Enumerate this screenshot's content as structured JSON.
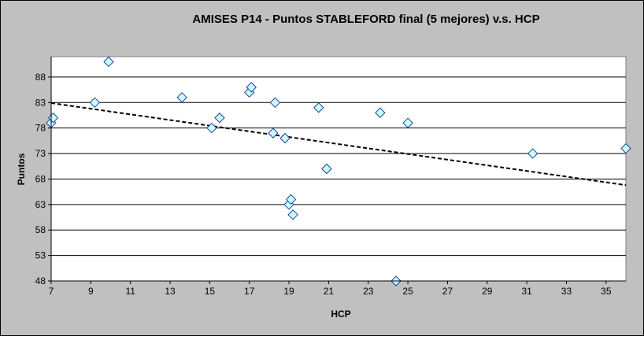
{
  "chart_data": {
    "type": "scatter",
    "title": "AMISES P14 - Puntos STABLEFORD final (5 mejores) v.s. HCP",
    "xlabel": "HCP",
    "ylabel": "Puntos",
    "xlim": [
      7,
      36
    ],
    "ylim": [
      48,
      92
    ],
    "xticks": [
      7,
      9,
      11,
      13,
      15,
      17,
      19,
      21,
      23,
      25,
      27,
      29,
      31,
      33,
      35
    ],
    "yticks": [
      48,
      53,
      58,
      63,
      68,
      73,
      78,
      83,
      88
    ],
    "grid": "horizontal",
    "legend": "none",
    "marker": "diamond",
    "marker_color": "#ccffff",
    "background_color": "#c0c0c0",
    "plot_color": "#ffffff",
    "series": [
      {
        "points": [
          {
            "x": 7.0,
            "y": 79
          },
          {
            "x": 7.1,
            "y": 80
          },
          {
            "x": 9.2,
            "y": 83
          },
          {
            "x": 9.9,
            "y": 91
          },
          {
            "x": 13.6,
            "y": 84
          },
          {
            "x": 15.1,
            "y": 78
          },
          {
            "x": 15.5,
            "y": 80
          },
          {
            "x": 17.0,
            "y": 85
          },
          {
            "x": 17.1,
            "y": 86
          },
          {
            "x": 18.2,
            "y": 77
          },
          {
            "x": 18.3,
            "y": 83
          },
          {
            "x": 18.8,
            "y": 76
          },
          {
            "x": 19.0,
            "y": 63
          },
          {
            "x": 19.1,
            "y": 64
          },
          {
            "x": 19.2,
            "y": 61
          },
          {
            "x": 20.5,
            "y": 82
          },
          {
            "x": 20.9,
            "y": 70
          },
          {
            "x": 23.6,
            "y": 81
          },
          {
            "x": 24.4,
            "y": 48
          },
          {
            "x": 25.0,
            "y": 79
          },
          {
            "x": 31.3,
            "y": 73
          },
          {
            "x": 36.0,
            "y": 74
          }
        ]
      }
    ],
    "trendline": {
      "type": "linear",
      "style": "dashed",
      "x0": 7,
      "y0": 82.9,
      "x1": 36,
      "y1": 66.8
    }
  }
}
